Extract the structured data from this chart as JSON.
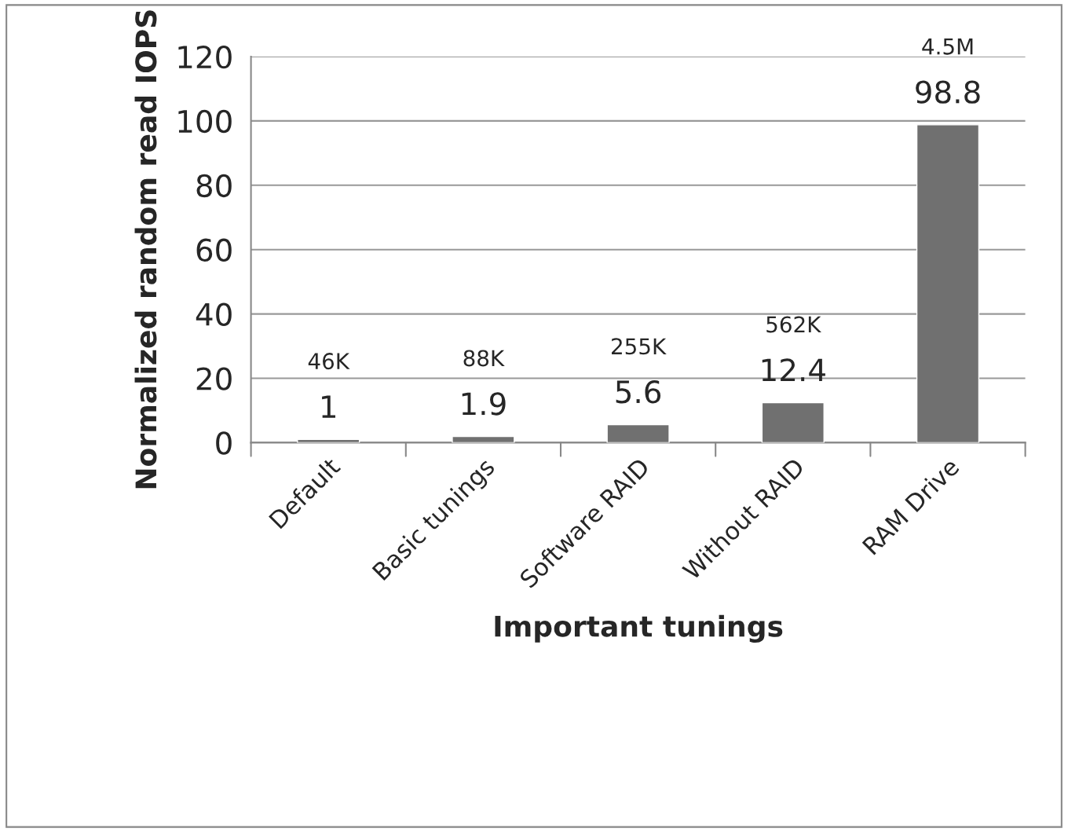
{
  "chart_data": {
    "type": "bar",
    "xlabel": "Important tunings",
    "ylabel": "Normalized random read IOPS",
    "categories": [
      "Default",
      "Basic tunings",
      "Software RAID",
      "Without RAID",
      "RAM Drive"
    ],
    "values": [
      1,
      1.9,
      5.6,
      12.4,
      98.8
    ],
    "color": "#707070",
    "data_labels": true,
    "ylim": [
      0,
      120
    ],
    "yticks": [
      0,
      20,
      40,
      60,
      80,
      100,
      120
    ],
    "grid": "y",
    "legend": false,
    "annotations": [
      "46K",
      "88K",
      "255K",
      "562K",
      "4.5M"
    ]
  }
}
